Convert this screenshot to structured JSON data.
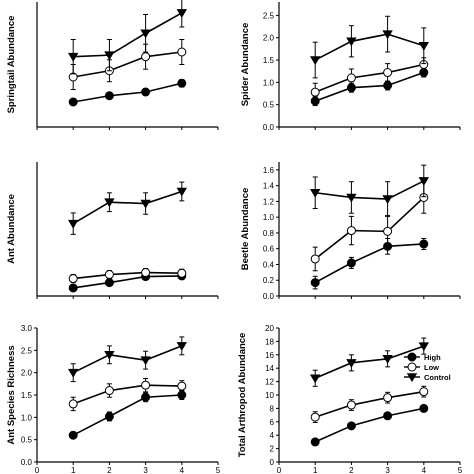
{
  "colors": {
    "ink": "#000000",
    "open_fill": "#ffffff",
    "background": "#ffffff"
  },
  "shared_x_ticks": [
    "0",
    "1",
    "2",
    "3",
    "4",
    "5"
  ],
  "legend": {
    "entries": [
      {
        "label": "High",
        "marker": "filled-circle"
      },
      {
        "label": "Low",
        "marker": "open-circle"
      },
      {
        "label": "Control",
        "marker": "filled-down-triangle"
      }
    ],
    "placement": "right of bottom-right panel"
  },
  "chart_data": [
    {
      "type": "line",
      "ylabel": "Springtail Abundance",
      "x": [
        1,
        2,
        3,
        4
      ],
      "xlim": [
        0,
        5
      ],
      "ylim": [
        0,
        4
      ],
      "yticks": [],
      "series": [
        {
          "marker": "filled-circle",
          "values": [
            0.8,
            1.0,
            1.12,
            1.4
          ],
          "errors": [
            0.1,
            0.1,
            0.1,
            0.12
          ]
        },
        {
          "marker": "open-circle",
          "values": [
            1.6,
            1.8,
            2.25,
            2.4
          ],
          "errors": [
            0.4,
            0.35,
            0.4,
            0.4
          ]
        },
        {
          "marker": "filled-down-triangle",
          "values": [
            2.25,
            2.3,
            3.0,
            3.65
          ],
          "errors": [
            0.55,
            0.5,
            0.6,
            0.45
          ]
        }
      ]
    },
    {
      "type": "line",
      "ylabel": "Spider Abundance",
      "x": [
        1,
        2,
        3,
        4
      ],
      "xlim": [
        0,
        5
      ],
      "ylim": [
        0,
        2.8
      ],
      "yticks": [
        "0.0",
        "0.5",
        "1.0",
        "1.5",
        "2.0",
        "2.5"
      ],
      "series": [
        {
          "marker": "filled-circle",
          "values": [
            0.58,
            0.88,
            0.93,
            1.22
          ],
          "errors": [
            0.1,
            0.1,
            0.1,
            0.1
          ]
        },
        {
          "marker": "open-circle",
          "values": [
            0.78,
            1.1,
            1.22,
            1.4
          ],
          "errors": [
            0.2,
            0.2,
            0.2,
            0.15
          ]
        },
        {
          "marker": "filled-down-triangle",
          "values": [
            1.5,
            1.92,
            2.08,
            1.82
          ],
          "errors": [
            0.4,
            0.35,
            0.4,
            0.4
          ]
        }
      ]
    },
    {
      "type": "line",
      "ylabel": "Ant Abundance",
      "x": [
        1,
        2,
        3,
        4
      ],
      "xlim": [
        0,
        5
      ],
      "ylim": [
        0,
        10
      ],
      "yticks": [],
      "series": [
        {
          "marker": "filled-circle",
          "values": [
            0.6,
            1.0,
            1.45,
            1.5
          ],
          "errors": [
            0.2,
            0.2,
            0.2,
            0.2
          ]
        },
        {
          "marker": "open-circle",
          "values": [
            1.3,
            1.6,
            1.75,
            1.7
          ],
          "errors": [
            0.3,
            0.3,
            0.3,
            0.3
          ]
        },
        {
          "marker": "filled-down-triangle",
          "values": [
            5.4,
            7.0,
            6.9,
            7.8
          ],
          "errors": [
            0.8,
            0.7,
            0.8,
            0.7
          ]
        }
      ]
    },
    {
      "type": "line",
      "ylabel": "Beetle Abundance",
      "x": [
        1,
        2,
        3,
        4
      ],
      "xlim": [
        0,
        5
      ],
      "ylim": [
        0,
        1.7
      ],
      "yticks": [
        "0.0",
        "0.2",
        "0.4",
        "0.6",
        "0.8",
        "1.0",
        "1.2",
        "1.4",
        "1.6"
      ],
      "series": [
        {
          "marker": "filled-circle",
          "values": [
            0.17,
            0.42,
            0.63,
            0.66
          ],
          "errors": [
            0.08,
            0.07,
            0.1,
            0.07
          ]
        },
        {
          "marker": "open-circle",
          "values": [
            0.47,
            0.83,
            0.82,
            1.25
          ],
          "errors": [
            0.15,
            0.18,
            0.2,
            0.2
          ]
        },
        {
          "marker": "filled-down-triangle",
          "values": [
            1.31,
            1.25,
            1.23,
            1.46
          ],
          "errors": [
            0.2,
            0.2,
            0.22,
            0.2
          ]
        }
      ]
    },
    {
      "type": "line",
      "ylabel": "Ant Species Richness",
      "x": [
        1,
        2,
        3,
        4
      ],
      "xlim": [
        0,
        5
      ],
      "ylim": [
        0,
        3
      ],
      "yticks": [
        "0.0",
        "0.5",
        "1.0",
        "1.5",
        "2.0",
        "2.5",
        "3.0"
      ],
      "series": [
        {
          "marker": "filled-circle",
          "values": [
            0.6,
            1.02,
            1.45,
            1.5
          ],
          "errors": [
            0.05,
            0.1,
            0.1,
            0.1
          ]
        },
        {
          "marker": "open-circle",
          "values": [
            1.3,
            1.6,
            1.72,
            1.7
          ],
          "errors": [
            0.15,
            0.15,
            0.15,
            0.12
          ]
        },
        {
          "marker": "filled-down-triangle",
          "values": [
            2.0,
            2.4,
            2.28,
            2.6
          ],
          "errors": [
            0.2,
            0.2,
            0.2,
            0.2
          ]
        }
      ]
    },
    {
      "type": "line",
      "ylabel": "Total Arthropod Abundance",
      "x": [
        1,
        2,
        3,
        4
      ],
      "xlim": [
        0,
        5
      ],
      "ylim": [
        0,
        20
      ],
      "yticks": [
        "0",
        "2",
        "4",
        "6",
        "8",
        "10",
        "12",
        "14",
        "16",
        "18",
        "20"
      ],
      "series": [
        {
          "marker": "filled-circle",
          "values": [
            3.0,
            5.4,
            6.9,
            8.0
          ],
          "errors": [
            0.3,
            0.4,
            0.4,
            0.4
          ]
        },
        {
          "marker": "open-circle",
          "values": [
            6.7,
            8.5,
            9.6,
            10.5
          ],
          "errors": [
            0.8,
            0.8,
            0.8,
            0.8
          ]
        },
        {
          "marker": "filled-down-triangle",
          "values": [
            12.5,
            14.8,
            15.4,
            17.3
          ],
          "errors": [
            1.2,
            1.2,
            1.2,
            1.2
          ]
        }
      ]
    }
  ]
}
